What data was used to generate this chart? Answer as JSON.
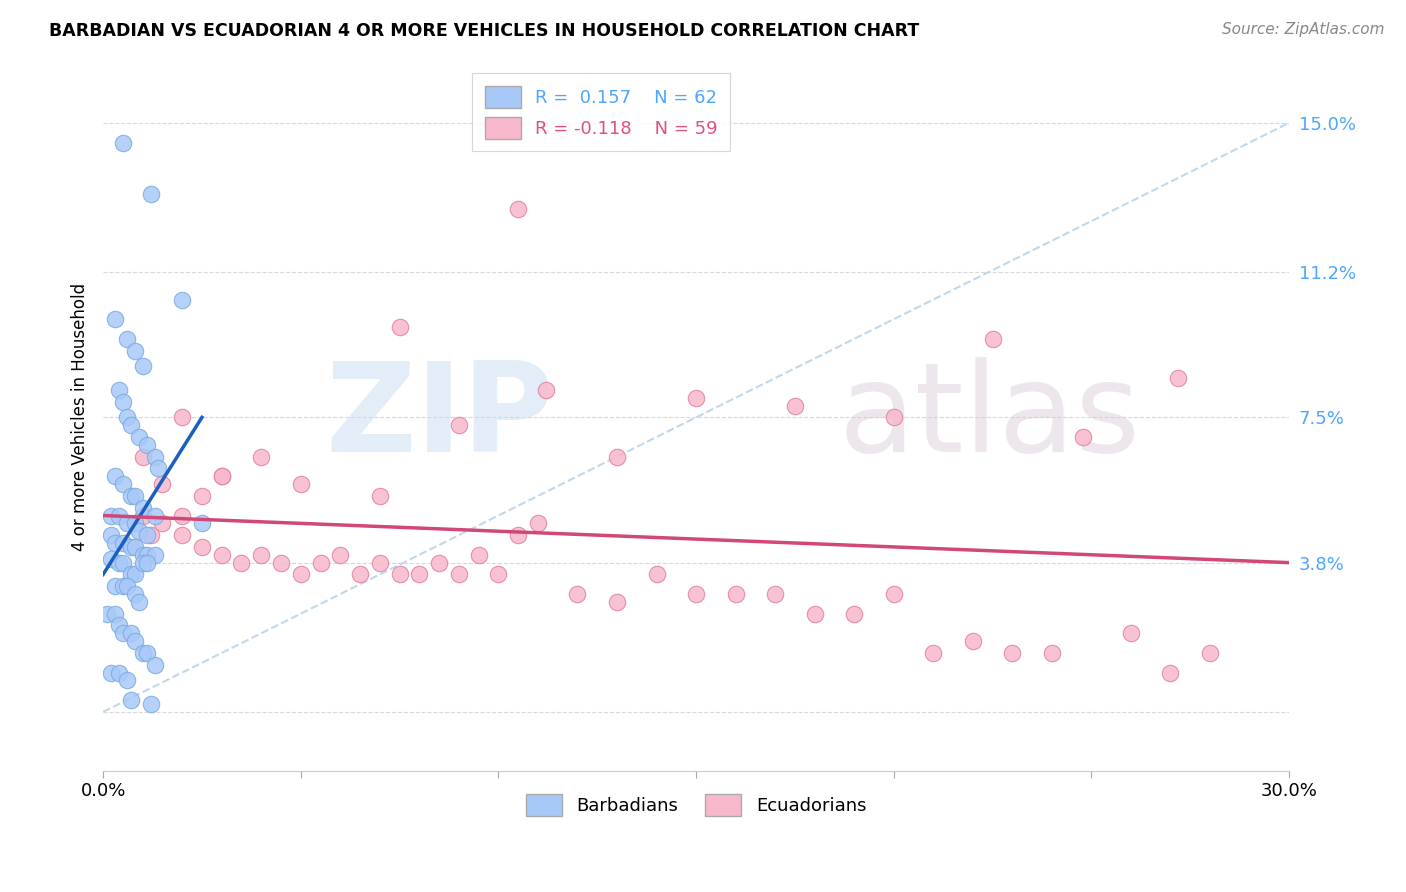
{
  "title": "BARBADIAN VS ECUADORIAN 4 OR MORE VEHICLES IN HOUSEHOLD CORRELATION CHART",
  "source": "Source: ZipAtlas.com",
  "ylabel": "4 or more Vehicles in Household",
  "xlim": [
    0.0,
    30.0
  ],
  "ylim": [
    -1.5,
    16.5
  ],
  "ytick_vals": [
    0.0,
    3.8,
    7.5,
    11.2,
    15.0
  ],
  "ytick_labels": [
    "",
    "3.8%",
    "7.5%",
    "11.2%",
    "15.0%"
  ],
  "xtick_vals": [
    0.0,
    5.0,
    10.0,
    15.0,
    20.0,
    25.0,
    30.0
  ],
  "xtick_labels": [
    "0.0%",
    "",
    "",
    "",
    "",
    "",
    "30.0%"
  ],
  "barbadian_color": "#a8c8f8",
  "barbadian_edge_color": "#7aaae0",
  "ecuadorian_color": "#f8b8cc",
  "ecuadorian_edge_color": "#e080a0",
  "barbadian_line_color": "#1a5fbf",
  "ecuadorian_line_color": "#d04878",
  "dashed_line_color": "#c0d8ee",
  "watermark_zip": "ZIP",
  "watermark_atlas": "atlas",
  "legend_text_barb": "R =  0.157    N = 62",
  "legend_text_ecua": "R = -0.118    N = 59",
  "legend_color_barb": "#4da6ff",
  "legend_color_ecua": "#e05080",
  "barb_line_x": [
    0.0,
    2.5
  ],
  "barb_line_y": [
    3.5,
    7.5
  ],
  "ecua_line_x": [
    0.0,
    30.0
  ],
  "ecua_line_y": [
    5.0,
    3.8
  ],
  "barbadian_x": [
    0.5,
    1.2,
    2.0,
    0.3,
    0.6,
    0.8,
    1.0,
    0.4,
    0.5,
    0.6,
    0.7,
    0.9,
    1.1,
    1.3,
    1.4,
    0.3,
    0.5,
    0.7,
    0.8,
    1.0,
    0.2,
    0.4,
    0.6,
    0.8,
    0.9,
    1.1,
    1.3,
    0.2,
    0.3,
    0.5,
    0.7,
    0.8,
    1.0,
    1.1,
    1.3,
    0.2,
    0.4,
    0.5,
    0.7,
    0.8,
    1.0,
    1.1,
    0.3,
    0.5,
    0.6,
    0.8,
    0.9,
    0.1,
    0.3,
    0.4,
    0.5,
    0.7,
    0.8,
    1.0,
    1.1,
    1.3,
    0.2,
    0.4,
    0.6,
    2.5,
    0.7,
    1.2
  ],
  "barbadian_y": [
    14.5,
    13.2,
    10.5,
    10.0,
    9.5,
    9.2,
    8.8,
    8.2,
    7.9,
    7.5,
    7.3,
    7.0,
    6.8,
    6.5,
    6.2,
    6.0,
    5.8,
    5.5,
    5.5,
    5.2,
    5.0,
    5.0,
    4.8,
    4.8,
    4.6,
    4.5,
    5.0,
    4.5,
    4.3,
    4.3,
    4.2,
    4.2,
    4.0,
    4.0,
    4.0,
    3.9,
    3.8,
    3.8,
    3.5,
    3.5,
    3.8,
    3.8,
    3.2,
    3.2,
    3.2,
    3.0,
    2.8,
    2.5,
    2.5,
    2.2,
    2.0,
    2.0,
    1.8,
    1.5,
    1.5,
    1.2,
    1.0,
    1.0,
    0.8,
    4.8,
    0.3,
    0.2
  ],
  "ecuadorian_x": [
    10.5,
    7.5,
    17.5,
    22.5,
    27.2,
    24.8,
    20.0,
    15.0,
    13.0,
    11.2,
    9.0,
    7.0,
    5.0,
    3.0,
    2.5,
    2.0,
    1.5,
    1.0,
    1.2,
    1.5,
    2.0,
    2.5,
    3.0,
    3.5,
    4.0,
    4.5,
    5.0,
    5.5,
    6.0,
    6.5,
    7.0,
    7.5,
    8.0,
    8.5,
    9.0,
    9.5,
    10.0,
    10.5,
    11.0,
    12.0,
    13.0,
    14.0,
    15.0,
    16.0,
    17.0,
    18.0,
    19.0,
    20.0,
    21.0,
    22.0,
    23.0,
    24.0,
    26.0,
    27.0,
    28.0,
    1.0,
    2.0,
    3.0,
    4.0
  ],
  "ecuadorian_y": [
    12.8,
    9.8,
    7.8,
    9.5,
    8.5,
    7.0,
    7.5,
    8.0,
    6.5,
    8.2,
    7.3,
    5.5,
    5.8,
    6.0,
    5.5,
    5.0,
    5.8,
    5.0,
    4.5,
    4.8,
    4.5,
    4.2,
    4.0,
    3.8,
    4.0,
    3.8,
    3.5,
    3.8,
    4.0,
    3.5,
    3.8,
    3.5,
    3.5,
    3.8,
    3.5,
    4.0,
    3.5,
    4.5,
    4.8,
    3.0,
    2.8,
    3.5,
    3.0,
    3.0,
    3.0,
    2.5,
    2.5,
    3.0,
    1.5,
    1.8,
    1.5,
    1.5,
    2.0,
    1.0,
    1.5,
    6.5,
    7.5,
    6.0,
    6.5
  ]
}
